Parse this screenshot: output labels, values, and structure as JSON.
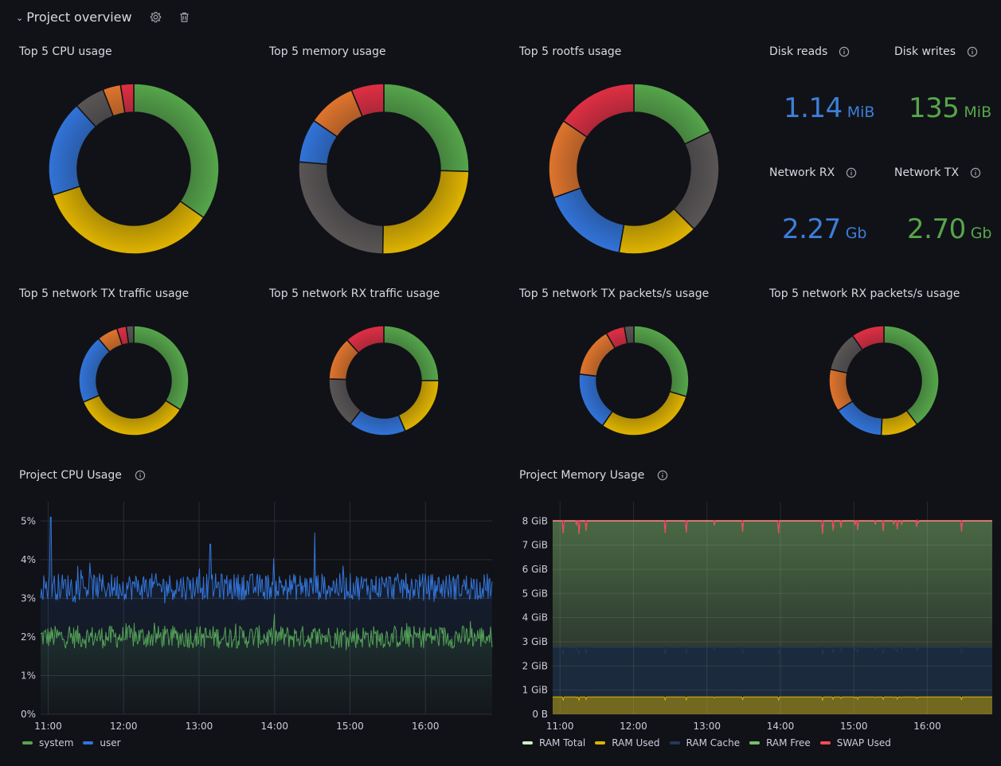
{
  "row": {
    "title": "Project overview",
    "icons": [
      "chevron-down-icon",
      "gear-icon",
      "trash-icon"
    ]
  },
  "palette": {
    "green": "#56a64b",
    "yellow": "#e0b400",
    "blue": "#3274d9",
    "gray": "#5a5656",
    "orange": "#e0752d",
    "red": "#e02f44"
  },
  "donuts": [
    {
      "title": "Top 5 CPU usage",
      "slices": [
        34.7,
        35.3,
        18.3,
        5.8,
        3.4,
        2.5
      ],
      "colors": [
        "green",
        "yellow",
        "blue",
        "gray",
        "orange",
        "red"
      ]
    },
    {
      "title": "Top 5 memory usage",
      "slices": [
        25.5,
        24.7,
        26.1,
        8.3,
        9.2,
        6.2
      ],
      "colors": [
        "green",
        "yellow",
        "gray",
        "blue",
        "orange",
        "red"
      ]
    },
    {
      "title": "Top 5 rootfs usage",
      "slices": [
        17.8,
        19.7,
        15.3,
        16.7,
        15.0,
        15.5
      ],
      "colors": [
        "green",
        "gray",
        "yellow",
        "blue",
        "orange",
        "red"
      ]
    },
    {
      "title": "Top 5 network TX traffic usage",
      "slices": [
        33.9,
        34.7,
        20.3,
        6.1,
        2.8,
        2.2
      ],
      "colors": [
        "green",
        "yellow",
        "blue",
        "orange",
        "red",
        "gray"
      ]
    },
    {
      "title": "Top 5 network RX traffic usage",
      "slices": [
        25.0,
        18.6,
        16.9,
        15.0,
        12.8,
        11.7
      ],
      "colors": [
        "green",
        "yellow",
        "blue",
        "gray",
        "orange",
        "red"
      ]
    },
    {
      "title": "Top 5 network TX packets/s usage",
      "slices": [
        29.7,
        30.0,
        17.2,
        14.7,
        5.6,
        2.8
      ],
      "colors": [
        "green",
        "yellow",
        "blue",
        "orange",
        "red",
        "gray"
      ]
    },
    {
      "title": "Top 5 network RX packets/s usage",
      "slices": [
        39.7,
        11.1,
        15.0,
        12.5,
        12.0,
        9.7
      ],
      "colors": [
        "green",
        "yellow",
        "blue",
        "orange",
        "gray",
        "red"
      ]
    }
  ],
  "stats": [
    {
      "title": "Disk reads",
      "value": "1.14",
      "unit": "MiB",
      "color": "blue"
    },
    {
      "title": "Disk writes",
      "value": "135",
      "unit": "MiB",
      "color": "green"
    },
    {
      "title": "Network RX",
      "value": "2.27",
      "unit": "Gb",
      "color": "blue"
    },
    {
      "title": "Network TX",
      "value": "2.70",
      "unit": "Gb",
      "color": "green"
    }
  ],
  "cpu_panel": {
    "title": "Project CPU Usage"
  },
  "mem_panel": {
    "title": "Project Memory Usage"
  },
  "chart_data": [
    {
      "type": "line",
      "title": "Project CPU Usage",
      "x_ticks": [
        "11:00",
        "12:00",
        "13:00",
        "14:00",
        "15:00",
        "16:00"
      ],
      "x_range": [
        "10:54",
        "16:53"
      ],
      "y_ticks": [
        "0%",
        "1%",
        "2%",
        "3%",
        "4%",
        "5%"
      ],
      "ylim": [
        0,
        5.5
      ],
      "series": [
        {
          "name": "system",
          "color": "#56a64b",
          "mean": 2.0,
          "noise": 0.3,
          "min": 1.3,
          "max": 2.6
        },
        {
          "name": "user",
          "color": "#3274d9",
          "mean": 3.3,
          "noise": 0.35,
          "min": 2.5,
          "max": 5.1,
          "spikes": [
            [
              "11:02",
              5.1
            ],
            [
              "14:32",
              4.7
            ],
            [
              "13:09",
              4.4
            ]
          ]
        }
      ],
      "legend": "bottom-left"
    },
    {
      "type": "area",
      "title": "Project Memory Usage",
      "x_ticks": [
        "11:00",
        "12:00",
        "13:00",
        "14:00",
        "15:00",
        "16:00"
      ],
      "x_range": [
        "10:54",
        "16:53"
      ],
      "y_ticks": [
        "0 B",
        "1 GiB",
        "2 GiB",
        "3 GiB",
        "4 GiB",
        "5 GiB",
        "6 GiB",
        "7 GiB",
        "8 GiB"
      ],
      "ylim": [
        0,
        8.8
      ],
      "series": [
        {
          "name": "RAM Total",
          "color": "#c8f2c2",
          "value_gib": 8.0
        },
        {
          "name": "RAM Used",
          "color": "#e0b400",
          "value_gib": 0.72
        },
        {
          "name": "RAM Cache",
          "color": "#1f3a5c",
          "value_gib": 2.05
        },
        {
          "name": "RAM Free",
          "color": "#73bf69",
          "value_gib": 5.25
        },
        {
          "name": "SWAP Used",
          "color": "#f2495c",
          "value_gib": 8.02
        }
      ],
      "legend": "bottom-left"
    }
  ]
}
